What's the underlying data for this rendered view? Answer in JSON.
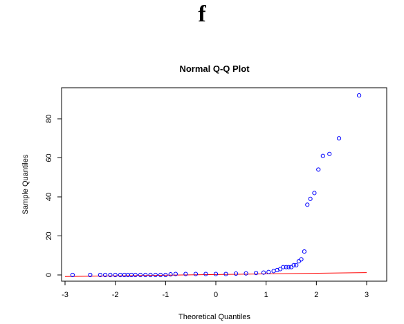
{
  "panel_label": "f",
  "chart_data": {
    "type": "scatter",
    "title": "Normal Q-Q Plot",
    "xlabel": "Theoretical Quantiles",
    "ylabel": "Sample Quantiles",
    "xlim": [
      -3.0,
      3.0
    ],
    "ylim": [
      -2,
      96
    ],
    "x_ticks": [
      -3,
      -2,
      -1,
      0,
      1,
      2,
      3
    ],
    "y_ticks": [
      0,
      20,
      40,
      60,
      80
    ],
    "grid": false,
    "legend": "none",
    "point_color": "#0000ff",
    "line_color": "#ff0000",
    "reference_line": {
      "x": [
        -3.0,
        3.0
      ],
      "y": [
        -0.8,
        1.2
      ]
    },
    "points": {
      "x": [
        -2.85,
        -2.5,
        -2.3,
        -2.2,
        -2.1,
        -2.0,
        -1.9,
        -1.82,
        -1.75,
        -1.68,
        -1.6,
        -1.5,
        -1.4,
        -1.3,
        -1.2,
        -1.1,
        -1.0,
        -0.9,
        -0.8,
        -0.6,
        -0.4,
        -0.2,
        0.0,
        0.2,
        0.4,
        0.6,
        0.8,
        0.95,
        1.05,
        1.15,
        1.22,
        1.28,
        1.34,
        1.4,
        1.45,
        1.5,
        1.55,
        1.6,
        1.65,
        1.7,
        1.76,
        1.82,
        1.88,
        1.96,
        2.04,
        2.13,
        2.26,
        2.45,
        2.85
      ],
      "y": [
        0,
        0,
        0,
        0,
        0,
        0,
        0,
        0,
        0,
        0,
        0,
        0,
        0,
        0,
        0,
        0,
        0,
        0.3,
        0.5,
        0.5,
        0.5,
        0.5,
        0.5,
        0.5,
        0.7,
        0.8,
        1,
        1.2,
        1.5,
        2,
        2.5,
        3,
        4,
        4,
        4,
        4,
        5,
        5,
        7,
        8,
        12,
        36,
        39,
        42,
        54,
        61,
        62,
        70,
        92
      ]
    }
  }
}
